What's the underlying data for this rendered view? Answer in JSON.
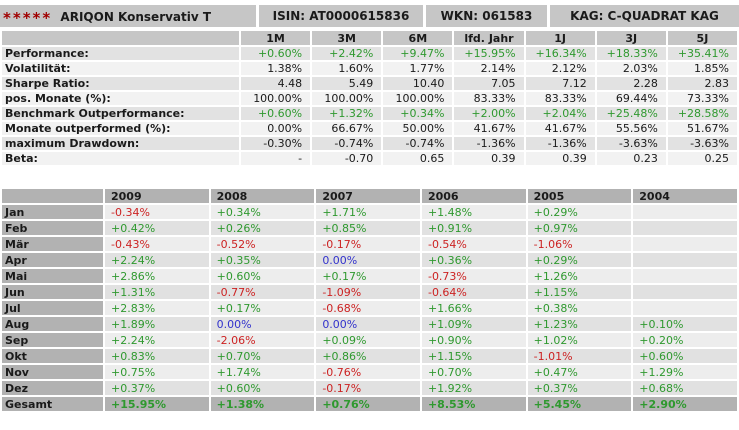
{
  "colors": {
    "positive": "#2f992f",
    "negative": "#cc2222",
    "zero": "#3333cc",
    "star": "#a00000"
  },
  "header": {
    "stars": "*****",
    "fund_name": "ARIQON Konservativ T",
    "isin": "ISIN: AT0000615836",
    "wkn": "WKN: 061583",
    "kag": "KAG: C-QUADRAT KAG"
  },
  "metrics_table": {
    "columns": [
      "1M",
      "3M",
      "6M",
      "lfd. Jahr",
      "1J",
      "3J",
      "5J"
    ],
    "rows": [
      {
        "label": "Performance:",
        "color": "positive",
        "values": [
          "+0.60%",
          "+2.42%",
          "+9.47%",
          "+15.95%",
          "+16.34%",
          "+18.33%",
          "+35.41%"
        ]
      },
      {
        "label": "Volatilität:",
        "color": "default",
        "values": [
          "1.38%",
          "1.60%",
          "1.77%",
          "2.14%",
          "2.12%",
          "2.03%",
          "1.85%"
        ]
      },
      {
        "label": "Sharpe Ratio:",
        "color": "default",
        "values": [
          "4.48",
          "5.49",
          "10.40",
          "7.05",
          "7.12",
          "2.28",
          "2.83"
        ]
      },
      {
        "label": "pos. Monate (%):",
        "color": "default",
        "values": [
          "100.00%",
          "100.00%",
          "100.00%",
          "83.33%",
          "83.33%",
          "69.44%",
          "73.33%"
        ]
      },
      {
        "label": "Benchmark Outperformance:",
        "color": "positive",
        "values": [
          "+0.60%",
          "+1.32%",
          "+0.34%",
          "+2.00%",
          "+2.04%",
          "+25.48%",
          "+28.58%"
        ]
      },
      {
        "label": "Monate outperformed (%):",
        "color": "default",
        "values": [
          "0.00%",
          "66.67%",
          "50.00%",
          "41.67%",
          "41.67%",
          "55.56%",
          "51.67%"
        ]
      },
      {
        "label": "maximum Drawdown:",
        "color": "default",
        "values": [
          "-0.30%",
          "-0.74%",
          "-0.74%",
          "-1.36%",
          "-1.36%",
          "-3.63%",
          "-3.63%"
        ]
      },
      {
        "label": "Beta:",
        "color": "default",
        "values": [
          "-",
          "-0.70",
          "0.65",
          "0.39",
          "0.39",
          "0.23",
          "0.25"
        ]
      }
    ]
  },
  "monthly_table": {
    "years": [
      "2009",
      "2008",
      "2007",
      "2006",
      "2005",
      "2004"
    ],
    "rows": [
      {
        "label": "Jan",
        "values": [
          "-0.34%",
          "+0.34%",
          "+1.71%",
          "+1.48%",
          "+0.29%",
          ""
        ]
      },
      {
        "label": "Feb",
        "values": [
          "+0.42%",
          "+0.26%",
          "+0.85%",
          "+0.91%",
          "+0.97%",
          ""
        ]
      },
      {
        "label": "Mär",
        "values": [
          "-0.43%",
          "-0.52%",
          "-0.17%",
          "-0.54%",
          "-1.06%",
          ""
        ]
      },
      {
        "label": "Apr",
        "values": [
          "+2.24%",
          "+0.35%",
          "0.00%",
          "+0.36%",
          "+0.29%",
          ""
        ]
      },
      {
        "label": "Mai",
        "values": [
          "+2.86%",
          "+0.60%",
          "+0.17%",
          "-0.73%",
          "+1.26%",
          ""
        ]
      },
      {
        "label": "Jun",
        "values": [
          "+1.31%",
          "-0.77%",
          "-1.09%",
          "-0.64%",
          "+1.15%",
          ""
        ]
      },
      {
        "label": "Jul",
        "values": [
          "+2.83%",
          "+0.17%",
          "-0.68%",
          "+1.66%",
          "+0.38%",
          ""
        ]
      },
      {
        "label": "Aug",
        "values": [
          "+1.89%",
          "0.00%",
          "0.00%",
          "+1.09%",
          "+1.23%",
          "+0.10%"
        ]
      },
      {
        "label": "Sep",
        "values": [
          "+2.24%",
          "-2.06%",
          "+0.09%",
          "+0.90%",
          "+1.02%",
          "+0.20%"
        ]
      },
      {
        "label": "Okt",
        "values": [
          "+0.83%",
          "+0.70%",
          "+0.86%",
          "+1.15%",
          "-1.01%",
          "+0.60%"
        ]
      },
      {
        "label": "Nov",
        "values": [
          "+0.75%",
          "+1.74%",
          "-0.76%",
          "+0.70%",
          "+0.47%",
          "+1.29%"
        ]
      },
      {
        "label": "Dez",
        "values": [
          "+0.37%",
          "+0.60%",
          "-0.17%",
          "+1.92%",
          "+0.37%",
          "+0.68%"
        ]
      }
    ],
    "total": {
      "label": "Gesamt",
      "values": [
        "+15.95%",
        "+1.38%",
        "+0.76%",
        "+8.53%",
        "+5.45%",
        "+2.90%"
      ]
    }
  }
}
